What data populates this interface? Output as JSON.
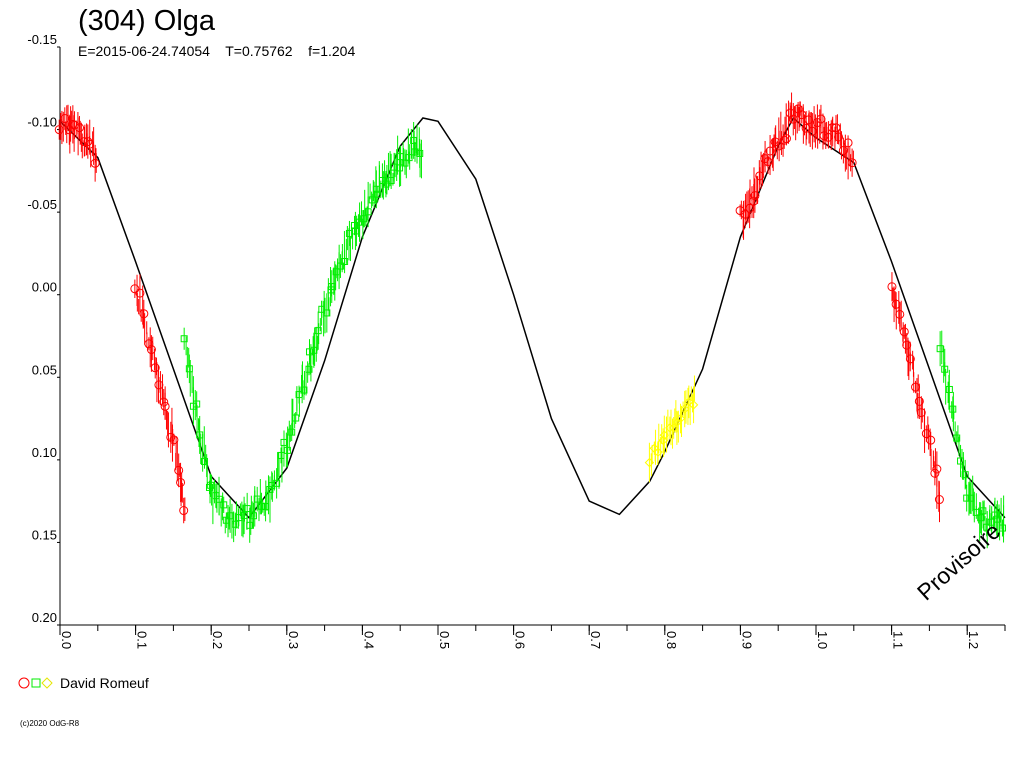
{
  "chart_data": {
    "type": "scatter",
    "title": "(304) Olga",
    "subtitle": "E=2015-06-24.74054    T=0.75762    f=1.204",
    "xlabel": "",
    "ylabel": "",
    "xlim": [
      0.0,
      1.25
    ],
    "ylim": [
      -0.15,
      0.2
    ],
    "y_inverted": true,
    "x_ticks": [
      "0.0",
      "0.1",
      "0.2",
      "0.3",
      "0.4",
      "0.5",
      "0.6",
      "0.7",
      "0.8",
      "0.9",
      "1.0",
      "1.1",
      "1.2"
    ],
    "y_ticks": [
      "-0.15",
      "-0.10",
      "-0.05",
      "0.00",
      "0.05",
      "0.10",
      "0.15",
      "0.20"
    ],
    "grid": false,
    "legend": {
      "placement": "bottom-left",
      "label": "David Romeuf"
    },
    "annotation": "Provisoire",
    "copyright": "(c)2020 OdG-R8",
    "fit_curve": {
      "name": "",
      "color": "#000000",
      "x": [
        0.0,
        0.05,
        0.1,
        0.15,
        0.2,
        0.25,
        0.3,
        0.35,
        0.4,
        0.45,
        0.48,
        0.5,
        0.55,
        0.6,
        0.65,
        0.7,
        0.74,
        0.78,
        0.8,
        0.85,
        0.9,
        0.95,
        0.97,
        1.0,
        1.05,
        1.1,
        1.15,
        1.2,
        1.25
      ],
      "y": [
        -0.105,
        -0.083,
        -0.02,
        0.045,
        0.11,
        0.135,
        0.105,
        0.04,
        -0.035,
        -0.09,
        -0.107,
        -0.105,
        -0.07,
        0.0,
        0.075,
        0.125,
        0.133,
        0.113,
        0.095,
        0.045,
        -0.035,
        -0.09,
        -0.107,
        -0.095,
        -0.08,
        -0.02,
        0.045,
        0.11,
        0.135
      ]
    },
    "series": [
      {
        "name": "",
        "color": "#ff0000",
        "marker": "circle",
        "segments": [
          {
            "x": [
              0.0,
              0.02,
              0.04,
              0.05
            ],
            "y": [
              -0.105,
              -0.1,
              -0.09,
              -0.08
            ]
          },
          {
            "x": [
              0.1,
              0.12,
              0.14,
              0.16,
              0.165
            ],
            "y": [
              -0.005,
              0.03,
              0.07,
              0.11,
              0.14
            ]
          },
          {
            "x": [
              0.9,
              0.92,
              0.94,
              0.96,
              0.97,
              0.99,
              1.01,
              1.03,
              1.05
            ],
            "y": [
              -0.045,
              -0.065,
              -0.085,
              -0.1,
              -0.11,
              -0.105,
              -0.1,
              -0.095,
              -0.08
            ]
          },
          {
            "x": [
              1.1,
              1.12,
              1.14,
              1.16,
              1.165
            ],
            "y": [
              -0.005,
              0.03,
              0.07,
              0.11,
              0.14
            ]
          }
        ]
      },
      {
        "name": "",
        "color": "#00ee00",
        "marker": "square",
        "segments": [
          {
            "x": [
              0.165,
              0.18,
              0.2,
              0.22,
              0.25,
              0.28,
              0.3,
              0.33,
              0.36,
              0.39,
              0.42,
              0.45,
              0.47,
              0.48
            ],
            "y": [
              0.03,
              0.07,
              0.12,
              0.135,
              0.135,
              0.12,
              0.09,
              0.04,
              -0.005,
              -0.04,
              -0.065,
              -0.08,
              -0.09,
              -0.085
            ]
          },
          {
            "x": [
              1.165,
              1.18,
              1.2,
              1.22,
              1.24,
              1.25
            ],
            "y": [
              0.03,
              0.07,
              0.12,
              0.135,
              0.14,
              0.135
            ]
          }
        ]
      },
      {
        "name": "",
        "color": "#ffff00",
        "marker": "diamond",
        "segments": [
          {
            "x": [
              0.78,
              0.8,
              0.82,
              0.84
            ],
            "y": [
              0.1,
              0.085,
              0.075,
              0.06
            ]
          }
        ]
      }
    ]
  }
}
